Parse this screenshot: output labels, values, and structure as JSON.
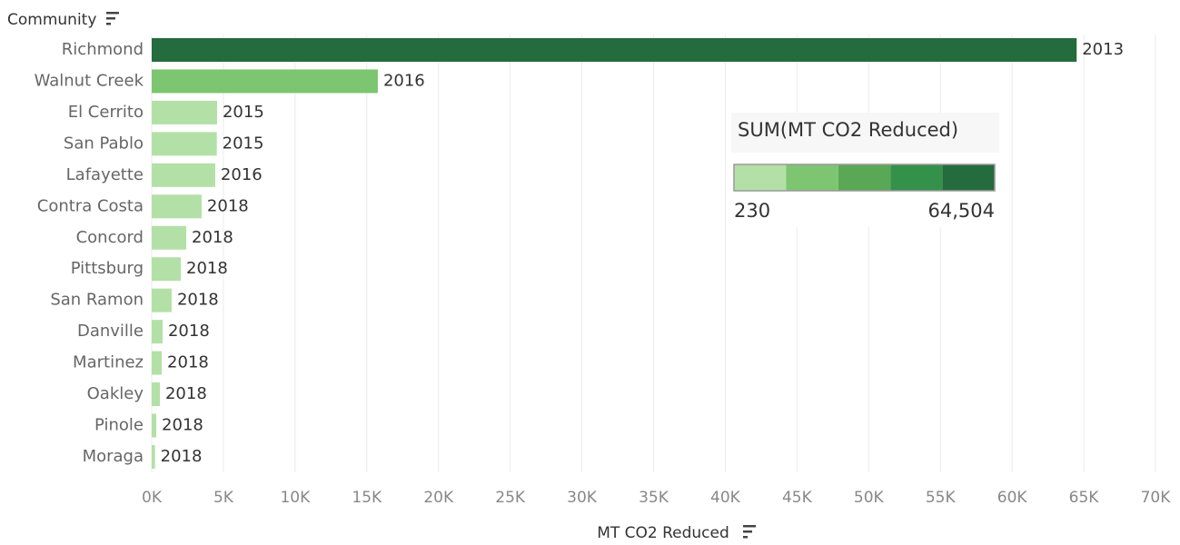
{
  "chart_data": {
    "type": "bar",
    "orientation": "horizontal",
    "y_header": "Community",
    "x_label": "MT CO2 Reduced",
    "categories": [
      "Richmond",
      "Walnut Creek",
      "El Cerrito",
      "San Pablo",
      "Lafayette",
      "Contra Costa",
      "Concord",
      "Pittsburg",
      "San Ramon",
      "Danville",
      "Martinez",
      "Oakley",
      "Pinole",
      "Moraga"
    ],
    "values": [
      64504,
      15770,
      4560,
      4540,
      4430,
      3480,
      2410,
      2030,
      1390,
      760,
      700,
      570,
      320,
      230
    ],
    "bar_labels": [
      2013,
      2016,
      2015,
      2015,
      2016,
      2018,
      2018,
      2018,
      2018,
      2018,
      2018,
      2018,
      2018,
      2018
    ],
    "xlim": [
      0,
      70000
    ],
    "xticks": [
      {
        "value": 0,
        "label": "0K"
      },
      {
        "value": 5000,
        "label": "5K"
      },
      {
        "value": 10000,
        "label": "10K"
      },
      {
        "value": 15000,
        "label": "15K"
      },
      {
        "value": 20000,
        "label": "20K"
      },
      {
        "value": 25000,
        "label": "25K"
      },
      {
        "value": 30000,
        "label": "30K"
      },
      {
        "value": 35000,
        "label": "35K"
      },
      {
        "value": 40000,
        "label": "40K"
      },
      {
        "value": 45000,
        "label": "45K"
      },
      {
        "value": 50000,
        "label": "50K"
      },
      {
        "value": 55000,
        "label": "55K"
      },
      {
        "value": 60000,
        "label": "60K"
      },
      {
        "value": 65000,
        "label": "65K"
      },
      {
        "value": 70000,
        "label": "70K"
      }
    ],
    "grid": true,
    "color_legend": {
      "title": "SUM(MT CO2 Reduced)",
      "min": 230,
      "max": {
        "value": 64504,
        "label": "64,504"
      },
      "colors": [
        "#b3e0a6",
        "#7dc571",
        "#5aa855",
        "#34914a",
        "#246b3e"
      ]
    }
  }
}
